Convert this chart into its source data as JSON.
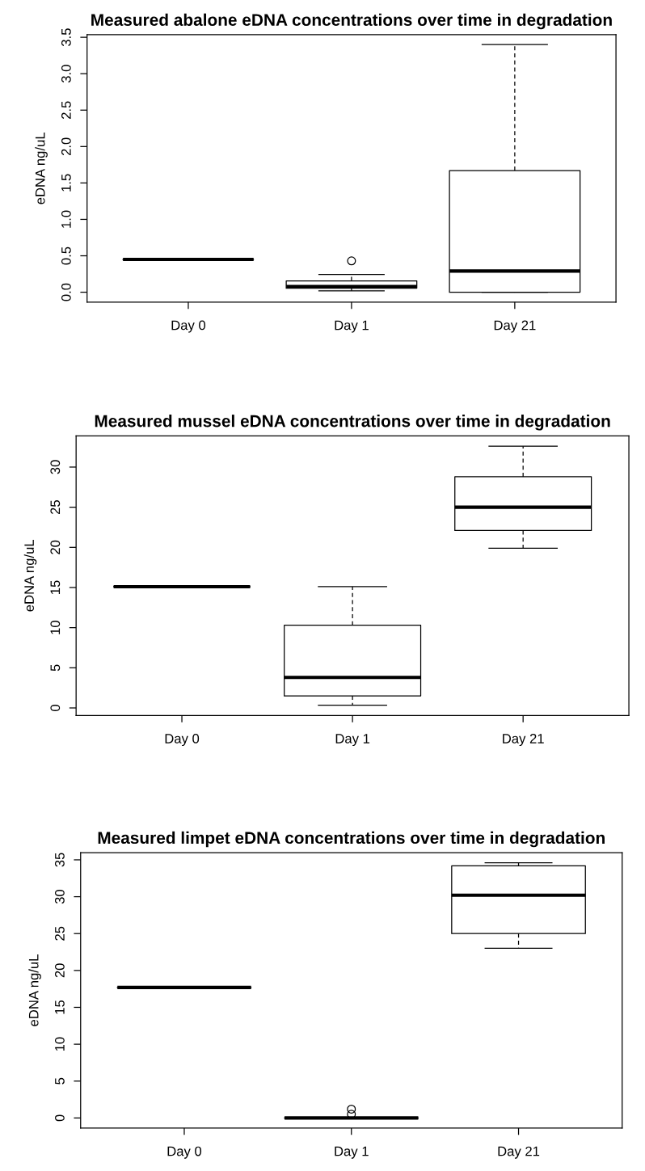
{
  "chart_data": [
    {
      "type": "box",
      "title": "Measured abalone eDNA concentrations over time in degradation",
      "ylabel": "eDNA ng/uL",
      "categories": [
        "Day 0",
        "Day 1",
        "Day 21"
      ],
      "boxes": [
        {
          "low": 0.45,
          "q1": 0.45,
          "median": 0.45,
          "q3": 0.45,
          "high": 0.45
        },
        {
          "low": 0.02,
          "q1": 0.056,
          "median": 0.078,
          "q3": 0.156,
          "high": 0.244,
          "outliers": [
            0.43
          ]
        },
        {
          "low": 0.0,
          "q1": 0.0,
          "median": 0.29,
          "q3": 1.67,
          "high": 3.4
        }
      ],
      "ylim": [
        -0.136,
        3.536
      ],
      "yticks": [
        {
          "value": 0,
          "label": "0.0"
        },
        0.5,
        {
          "value": 1,
          "label": "1.0"
        },
        1.5,
        {
          "value": 2,
          "label": "2.0"
        },
        2.5,
        {
          "value": 3,
          "label": "3.0"
        },
        3.5
      ],
      "grid": false,
      "legend": false
    },
    {
      "type": "box",
      "title": "Measured mussel eDNA concentrations over time in degradation",
      "ylabel": "eDNA ng/uL",
      "categories": [
        "Day 0",
        "Day 1",
        "Day 21"
      ],
      "boxes": [
        {
          "low": 15.1,
          "q1": 15.1,
          "median": 15.1,
          "q3": 15.1,
          "high": 15.1
        },
        {
          "low": 0.35,
          "q1": 1.5,
          "median": 3.8,
          "q3": 10.3,
          "high": 15.1
        },
        {
          "low": 19.9,
          "q1": 22.1,
          "median": 25.0,
          "q3": 28.8,
          "high": 32.6
        }
      ],
      "ylim": [
        -0.94,
        33.89
      ],
      "yticks": [
        0,
        5,
        10,
        15,
        20,
        25,
        30
      ],
      "legend": false
    },
    {
      "type": "box",
      "title": "Measured limpet eDNA concentrations over time in degradation",
      "ylabel": "eDNA ng/uL",
      "categories": [
        "Day 0",
        "Day 1",
        "Day 21"
      ],
      "boxes": [
        {
          "low": 17.7,
          "q1": 17.7,
          "median": 17.7,
          "q3": 17.7,
          "high": 17.7
        },
        {
          "low": 0.0,
          "q1": 0.0,
          "median": 0.0,
          "q3": 0.0,
          "high": 0.0,
          "outliers": [
            0.5,
            1.2
          ]
        },
        {
          "low": 23.0,
          "q1": 25.0,
          "median": 30.2,
          "q3": 34.2,
          "high": 34.6
        }
      ],
      "ylim": [
        -1.38,
        35.98
      ],
      "yticks": [
        0,
        5,
        10,
        15,
        20,
        25,
        30,
        35
      ],
      "grid": false,
      "legend": false
    }
  ]
}
